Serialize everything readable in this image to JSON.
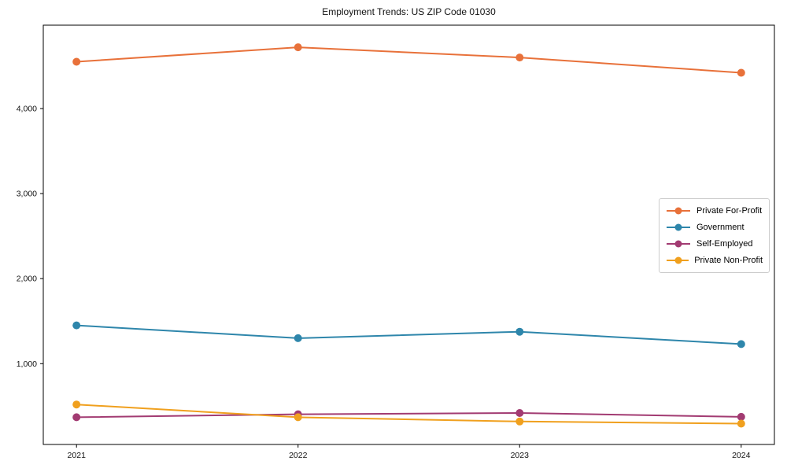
{
  "chart_data": {
    "type": "line",
    "title": "Employment Trends: US ZIP Code 01030",
    "xlabel": "",
    "ylabel": "",
    "x": [
      2021,
      2022,
      2023,
      2024
    ],
    "x_tick_labels": [
      "2021",
      "2022",
      "2023",
      "2024"
    ],
    "y_tick_values": [
      1000,
      2000,
      3000,
      4000
    ],
    "y_tick_labels": [
      "1,000",
      "2,000",
      "3,000",
      "4,000"
    ],
    "xlim": [
      2020.85,
      2024.15
    ],
    "ylim": [
      50,
      4980
    ],
    "grid": false,
    "legend_position": "right-middle",
    "frame": true,
    "series": [
      {
        "name": "Private For-Profit",
        "color": "#E8713A",
        "values": [
          4550,
          4720,
          4600,
          4420
        ]
      },
      {
        "name": "Government",
        "color": "#2E86AB",
        "values": [
          1450,
          1300,
          1375,
          1230
        ]
      },
      {
        "name": "Self-Employed",
        "color": "#A23B72",
        "values": [
          370,
          405,
          420,
          375
        ]
      },
      {
        "name": "Private Non-Profit",
        "color": "#F0A01E",
        "values": [
          520,
          370,
          320,
          295
        ]
      }
    ],
    "axis_color": "#000000",
    "tick_label_color": "#111111"
  }
}
